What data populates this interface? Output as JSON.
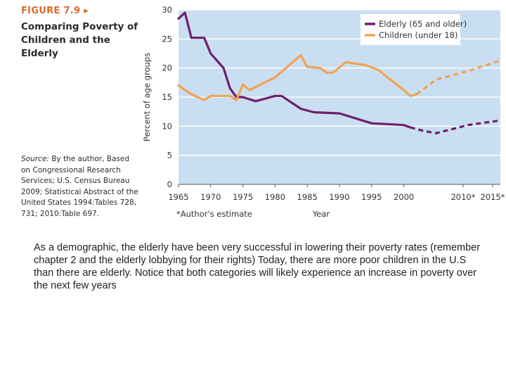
{
  "figure": {
    "label": "FIGURE 7.9 ▸",
    "title": "Comparing Poverty of Children and the Elderly",
    "source_prefix": "Source:",
    "source_rest": "By the author, Based on Congressional Research Services; U.S. Census Bureau 2009; Statistical Abstract of the United States 1994:Tables 728, 731; 2010:Table 697.",
    "estimate_note": "*Author's estimate"
  },
  "caption": "As a demographic, the elderly have been very successful in lowering their poverty rates (remember chapter 2 and the elderly lobbying for their rights) Today, there are more poor children in the U.S than there are elderly. Notice that both categories will likely experience an increase in poverty over the next few years",
  "colors": {
    "plot_bg": "#c9dff1",
    "grid": "#ffffff",
    "elderly": "#6e1f6b",
    "children": "#f0a256"
  },
  "chart_data": {
    "type": "line",
    "ylabel": "Percent of age groups",
    "xlabel": "Year",
    "xlim": [
      1965,
      2015
    ],
    "ylim": [
      0,
      30
    ],
    "grid": true,
    "legend_position": "top-right",
    "x_ticks": [
      "1965",
      "1970",
      "1975",
      "1980",
      "1985",
      "1990",
      "1995",
      "2000",
      "2010*",
      "2015*"
    ],
    "y_ticks": [
      0,
      5,
      10,
      15,
      20,
      25,
      30
    ],
    "series": [
      {
        "name": "Elderly (65 and older)",
        "color": "#6e1f6b",
        "actual": [
          [
            1965,
            28.5
          ],
          [
            1966,
            29.5
          ],
          [
            1967,
            25.2
          ],
          [
            1969,
            25.2
          ],
          [
            1970,
            22.5
          ],
          [
            1972,
            20.0
          ],
          [
            1973,
            16.5
          ],
          [
            1974,
            15.0
          ],
          [
            1975,
            15.0
          ],
          [
            1977,
            14.3
          ],
          [
            1980,
            15.2
          ],
          [
            1981,
            15.2
          ],
          [
            1984,
            13.0
          ],
          [
            1986,
            12.4
          ],
          [
            1990,
            12.2
          ],
          [
            1995,
            10.5
          ],
          [
            2000,
            10.2
          ],
          [
            2001,
            9.8
          ]
        ],
        "estimate": [
          [
            2001,
            9.8
          ],
          [
            2003,
            9.2
          ],
          [
            2005,
            8.8
          ],
          [
            2010,
            10.2
          ],
          [
            2015,
            11.0
          ]
        ]
      },
      {
        "name": "Children (under 18)",
        "color": "#f0a256",
        "actual": [
          [
            1965,
            17.0
          ],
          [
            1967,
            15.5
          ],
          [
            1969,
            14.5
          ],
          [
            1970,
            15.2
          ],
          [
            1973,
            15.2
          ],
          [
            1974,
            14.5
          ],
          [
            1975,
            17.2
          ],
          [
            1976,
            16.2
          ],
          [
            1980,
            18.4
          ],
          [
            1984,
            22.2
          ],
          [
            1985,
            20.2
          ],
          [
            1987,
            20.0
          ],
          [
            1988,
            19.2
          ],
          [
            1989,
            19.2
          ],
          [
            1991,
            21.0
          ],
          [
            1994,
            20.5
          ],
          [
            1996,
            19.7
          ],
          [
            2000,
            16.2
          ],
          [
            2001,
            15.2
          ],
          [
            2002,
            15.5
          ]
        ],
        "estimate": [
          [
            2002,
            15.5
          ],
          [
            2005,
            18.0
          ],
          [
            2010,
            19.5
          ],
          [
            2015,
            21.3
          ]
        ]
      }
    ]
  }
}
